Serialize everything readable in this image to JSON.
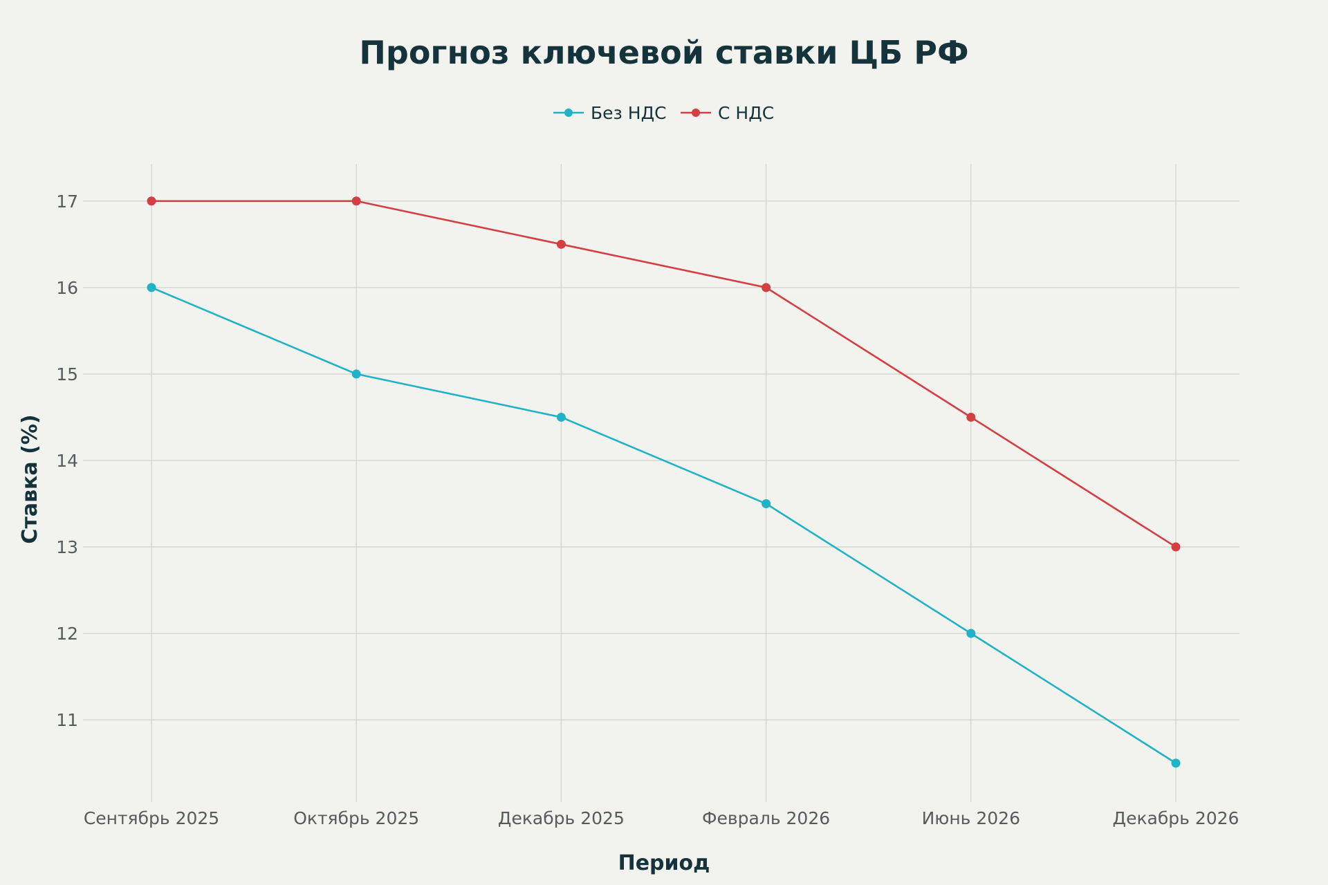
{
  "chart_data": {
    "type": "line",
    "title": "Прогноз ключевой ставки ЦБ РФ",
    "xlabel": "Период",
    "ylabel": "Ставка (%)",
    "categories": [
      "Сентябрь 2025",
      "Октябрь 2025",
      "Декабрь 2025",
      "Февраль 2026",
      "Июнь 2026",
      "Декабрь 2026"
    ],
    "series": [
      {
        "name": "Без НДС",
        "color": "#1fb3c8",
        "values": [
          16,
          15,
          14.5,
          13.5,
          12,
          10.5
        ]
      },
      {
        "name": "С НДС",
        "color": "#d43f42",
        "values": [
          17,
          17,
          16.5,
          16,
          14.5,
          13
        ]
      }
    ],
    "yticks": [
      11,
      12,
      13,
      14,
      15,
      16,
      17
    ],
    "ylim": [
      10.05,
      17.43
    ],
    "grid": true,
    "legend": "top-center"
  }
}
